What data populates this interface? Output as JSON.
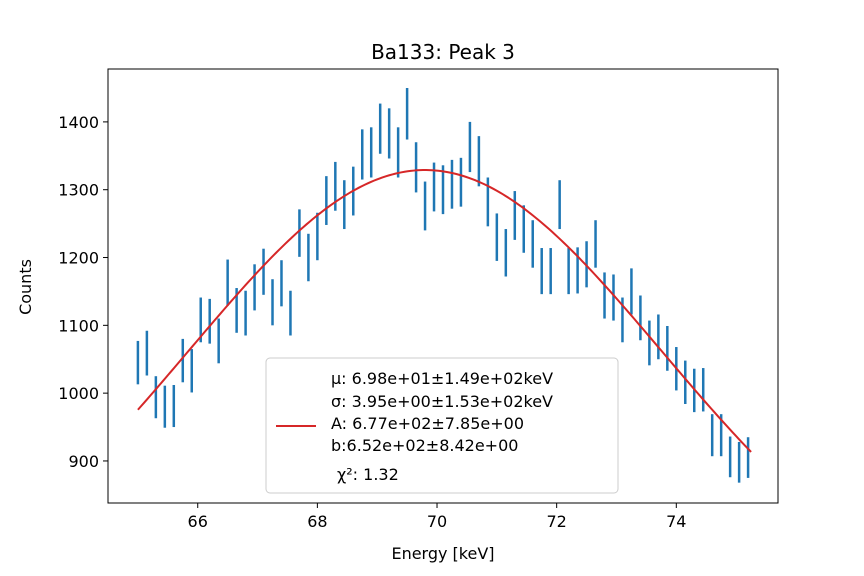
{
  "chart_data": {
    "type": "scatter",
    "title": "Ba133: Peak 3",
    "xlabel": "Energy [keV]",
    "ylabel": "Counts",
    "xlim": [
      64.5,
      75.7
    ],
    "ylim": [
      838,
      1478
    ],
    "xticks": [
      66,
      68,
      70,
      72,
      74
    ],
    "yticks": [
      900,
      1000,
      1100,
      1200,
      1300,
      1400
    ],
    "grid": false,
    "legend_position": "lower center",
    "series": [
      {
        "kind": "errorbar",
        "color": "#1f77b4",
        "x": [
          65.0,
          65.15,
          65.3,
          65.45,
          65.6,
          65.75,
          65.9,
          66.05,
          66.2,
          66.35,
          66.5,
          66.65,
          66.8,
          66.95,
          67.1,
          67.25,
          67.4,
          67.55,
          67.7,
          67.85,
          68.0,
          68.15,
          68.3,
          68.45,
          68.6,
          68.75,
          68.9,
          69.05,
          69.2,
          69.35,
          69.5,
          69.65,
          69.8,
          69.95,
          70.1,
          70.25,
          70.4,
          70.55,
          70.7,
          70.85,
          71.0,
          71.15,
          71.3,
          71.45,
          71.6,
          71.75,
          71.9,
          72.05,
          72.2,
          72.35,
          72.5,
          72.65,
          72.8,
          72.95,
          73.1,
          73.25,
          73.4,
          73.55,
          73.7,
          73.85,
          74.0,
          74.15,
          74.3,
          74.45,
          74.6,
          74.75,
          74.9,
          75.05,
          75.2
        ],
        "y": [
          1045,
          1059,
          994,
          980,
          981,
          1048,
          1033,
          1108,
          1106,
          1077,
          1163,
          1122,
          1118,
          1156,
          1179,
          1134,
          1162,
          1118,
          1236,
          1200,
          1231,
          1284,
          1305,
          1278,
          1298,
          1352,
          1355,
          1390,
          1383,
          1355,
          1412,
          1333,
          1276,
          1304,
          1300,
          1308,
          1311,
          1363,
          1342,
          1282,
          1230,
          1207,
          1262,
          1242,
          1220,
          1180,
          1180,
          1278,
          1180,
          1181,
          1190,
          1220,
          1144,
          1141,
          1108,
          1150,
          1111,
          1074,
          1083,
          1066,
          1036,
          1016,
          1004,
          1005,
          938,
          938,
          906,
          898,
          905
        ],
        "yerr": [
          32,
          33,
          31,
          31,
          31,
          32,
          32,
          33,
          33,
          33,
          34,
          33,
          33,
          34,
          34,
          34,
          34,
          33,
          35,
          35,
          35,
          36,
          36,
          36,
          36,
          37,
          37,
          37,
          37,
          37,
          38,
          37,
          36,
          36,
          36,
          36,
          36,
          37,
          37,
          36,
          35,
          35,
          36,
          35,
          35,
          34,
          34,
          36,
          34,
          34,
          34,
          35,
          34,
          34,
          33,
          34,
          33,
          33,
          33,
          33,
          32,
          32,
          32,
          32,
          31,
          31,
          30,
          30,
          30
        ]
      },
      {
        "kind": "line",
        "color": "#d62728",
        "fit": {
          "mu": 69.8,
          "sigma": 3.95,
          "A": 677,
          "b": 652
        },
        "x_range": [
          65.0,
          75.25
        ]
      }
    ],
    "legend": {
      "lines": [
        "μ: 6.98e+01±1.49e+02keV",
        "σ: 3.95e+00±1.53e+02keV",
        "A: 6.77e+02±7.85e+00",
        "b:6.52e+02±8.42e+00",
        "χ²: 1.32"
      ]
    }
  }
}
